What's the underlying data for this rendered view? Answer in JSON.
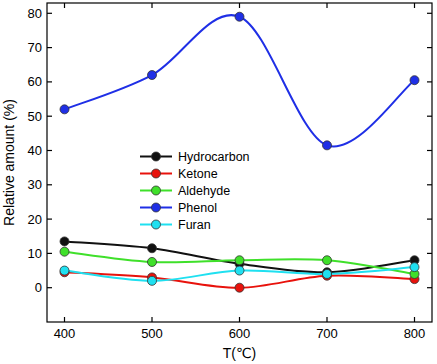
{
  "chart_data": {
    "type": "line",
    "x_label": "T(℃)",
    "y_label": "Relative amount (%)",
    "x": [
      400,
      500,
      600,
      700,
      800
    ],
    "series": [
      {
        "name": "Hydrocarbon",
        "color": "#111111",
        "values": [
          13.5,
          11.5,
          7,
          4.5,
          8
        ]
      },
      {
        "name": "Ketone",
        "color": "#e8120c",
        "values": [
          4.5,
          3,
          0,
          3.5,
          2.5
        ]
      },
      {
        "name": "Aldehyde",
        "color": "#3fe02a",
        "values": [
          10.5,
          7.5,
          8,
          8,
          4
        ]
      },
      {
        "name": "Phenol",
        "color": "#1f2fe6",
        "values": [
          52,
          62,
          79,
          41.5,
          60.5
        ]
      },
      {
        "name": "Furan",
        "color": "#1fe0f0",
        "values": [
          5,
          2,
          5,
          4,
          6
        ]
      }
    ],
    "xlim": [
      380,
      820
    ],
    "ylim": [
      -10,
      83
    ],
    "xticks": [
      400,
      500,
      600,
      700,
      800
    ],
    "yticks": [
      0,
      10,
      20,
      30,
      40,
      50,
      60,
      70,
      80
    ],
    "marker": "circle",
    "line_style": "smooth",
    "legend": "center",
    "grid": false
  }
}
